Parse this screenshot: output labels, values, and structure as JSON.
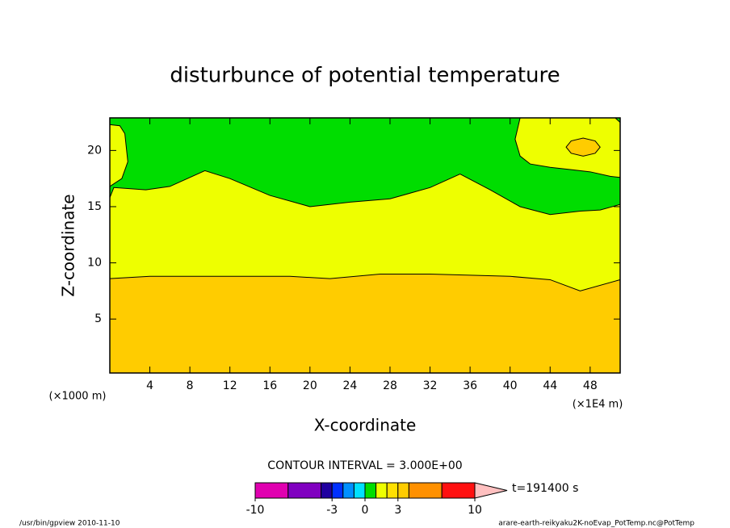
{
  "chart_data": {
    "type": "contour",
    "title": "disturbunce of potential temperature",
    "xlabel": "X-coordinate",
    "ylabel": "Z-coordinate",
    "xunit": "(×1000 m)",
    "xunit2": "(×1E4 m)",
    "xlim": [
      0,
      51
    ],
    "ylim": [
      0.2,
      22.9
    ],
    "xticks": [
      4,
      8,
      12,
      16,
      20,
      24,
      28,
      32,
      36,
      40,
      44,
      48
    ],
    "yticks": [
      5,
      10,
      15,
      20
    ],
    "regions": [
      {
        "color": "#00dd00",
        "x": [
          0,
          51,
          51,
          0
        ],
        "z": [
          0.2,
          0.2,
          22.9,
          22.9
        ]
      },
      {
        "color": "#eeff00",
        "x": [
          0,
          0,
          0.4,
          3.6,
          6,
          9.5,
          12,
          16,
          20,
          24,
          28,
          32,
          35,
          38,
          41,
          44,
          47,
          49,
          51,
          51
        ],
        "z": [
          0.2,
          15.8,
          16.7,
          16.5,
          16.8,
          18.2,
          17.5,
          16,
          15,
          15.4,
          15.7,
          16.7,
          17.9,
          16.5,
          15,
          14.3,
          14.6,
          14.7,
          15.2,
          0.2
        ]
      },
      {
        "color": "#ffcc00",
        "x": [
          0,
          0,
          4,
          10,
          18,
          22,
          27,
          32,
          40,
          44,
          47,
          51,
          51
        ],
        "z": [
          0.2,
          8.6,
          8.8,
          8.8,
          8.8,
          8.6,
          9.0,
          9.0,
          8.8,
          8.5,
          7.5,
          8.5,
          0.2
        ]
      },
      {
        "color": "#eeff00",
        "x": [
          0,
          1.2,
          1.8,
          1.5,
          1,
          0
        ],
        "z": [
          16.8,
          17.5,
          19,
          21.5,
          22.2,
          22.3
        ]
      },
      {
        "color": "#eeff00",
        "x": [
          41,
          40.5,
          41,
          42,
          44,
          46,
          48,
          50,
          51,
          51,
          50.5
        ],
        "z": [
          22.9,
          21,
          19.5,
          18.8,
          18.5,
          18.3,
          18.1,
          17.7,
          17.6,
          22.5,
          22.9
        ]
      },
      {
        "color": "#ffcc00",
        "x": [
          45.6,
          46.1,
          47.3,
          48.5,
          49,
          48.5,
          47.3,
          46.1
        ],
        "z": [
          20.3,
          20.85,
          21.1,
          20.85,
          20.3,
          19.75,
          19.5,
          19.75
        ]
      }
    ],
    "contour_label": "CONTOUR INTERVAL = 3.000E+00",
    "time_label": "t=191400 s",
    "colorbar": {
      "levels": [
        -10,
        -7,
        -4,
        -3,
        -2,
        -1,
        0,
        1,
        2,
        3,
        4,
        7,
        10
      ],
      "colors": [
        "#e000b0",
        "#8000c0",
        "#2000a0",
        "#0030ff",
        "#0090ff",
        "#00e0ff",
        "#00dd00",
        "#eeff00",
        "#ffe000",
        "#ffcc00",
        "#ff9000",
        "#ff1010"
      ],
      "extend_color": "#ffc0c0",
      "ticks": [
        -10,
        -3,
        0,
        3,
        10
      ]
    },
    "footer_left": "/usr/bin/gpview  2010-11-10",
    "footer_right": "arare-earth-reikyaku2K-noEvap_PotTemp.nc@PotTemp"
  }
}
